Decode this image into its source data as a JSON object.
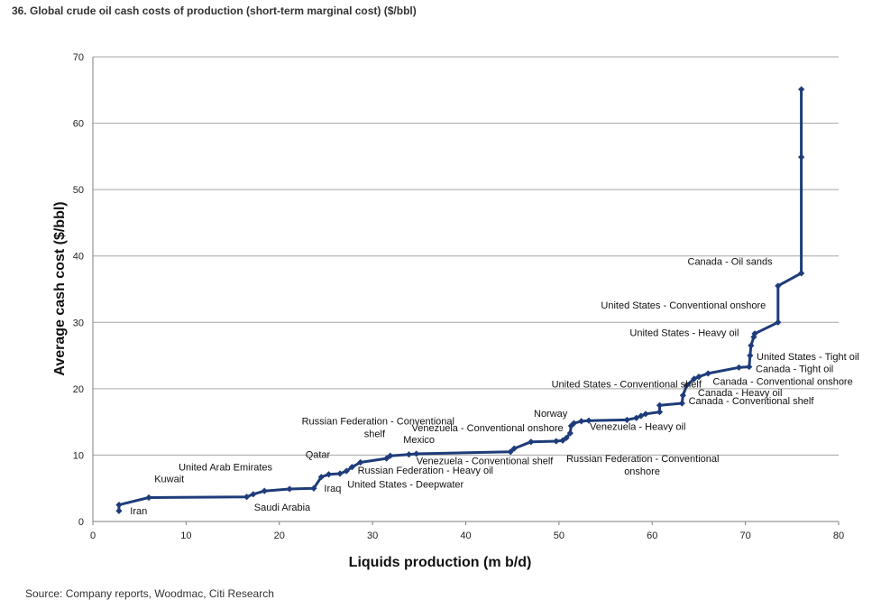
{
  "title": "36. Global crude oil cash costs of production (short-term marginal cost) ($/bbl)",
  "source": "Source: Company reports, Woodmac, Citi Research",
  "colors": {
    "series": "#1f3c7a",
    "grid": "#a6a6a6"
  },
  "chart_data": {
    "type": "line",
    "xlabel": "Liquids production (m b/d)",
    "ylabel": "Average cash cost ($/bbl)",
    "xlim": [
      0,
      80
    ],
    "ylim": [
      0,
      70
    ],
    "xticks": [
      "0",
      "10",
      "20",
      "30",
      "40",
      "50",
      "60",
      "70",
      "80"
    ],
    "yticks": [
      "0",
      "10",
      "20",
      "30",
      "40",
      "50",
      "60",
      "70"
    ],
    "grid": "horizontal",
    "legend": "none",
    "series": [
      {
        "x": [
          2.8,
          2.8,
          6.0,
          16.5,
          17.2,
          18.4,
          21.1,
          23.7,
          24.5,
          25.3,
          26.5,
          27.2,
          27.8,
          28.7,
          31.5,
          31.9,
          33.9,
          34.7,
          44.8,
          45.2,
          47.0,
          49.7,
          50.4,
          50.8,
          51.2,
          51.3,
          51.6,
          52.4,
          53.2,
          57.3,
          58.3,
          58.8,
          59.3,
          60.8,
          60.8,
          63.2,
          63.3,
          63.7,
          64.5,
          65.0,
          66.0,
          69.3,
          70.4,
          70.5,
          70.6,
          70.9,
          71.0,
          73.5,
          73.5,
          76.0,
          76.0,
          76.0
        ],
        "y": [
          1.6,
          2.5,
          3.6,
          3.7,
          4.1,
          4.6,
          4.9,
          5.0,
          6.7,
          7.1,
          7.2,
          7.6,
          8.2,
          8.9,
          9.5,
          9.9,
          10.1,
          10.2,
          10.5,
          11.0,
          12.0,
          12.1,
          12.2,
          12.6,
          13.3,
          14.4,
          14.8,
          15.1,
          15.2,
          15.3,
          15.6,
          15.9,
          16.2,
          16.5,
          17.5,
          17.8,
          19.0,
          20.5,
          21.5,
          21.8,
          22.3,
          23.2,
          23.3,
          25.0,
          26.5,
          27.8,
          28.3,
          30.0,
          35.5,
          37.4,
          54.9,
          65.1
        ]
      }
    ],
    "annotations": [
      {
        "text": "Iran",
        "x": 4.0,
        "y": 1.1
      },
      {
        "text": "Kuwait",
        "x": 6.6,
        "y": 5.9
      },
      {
        "text": "United Arab Emirates",
        "x": 9.2,
        "y": 7.7
      },
      {
        "text": "Saudi Arabia",
        "x": 17.3,
        "y": 1.6
      },
      {
        "text": "Qatar",
        "x": 22.8,
        "y": 9.6
      },
      {
        "text": "Iraq",
        "x": 24.8,
        "y": 4.5
      },
      {
        "text": "Russian Federation - Heavy oil",
        "x": 28.4,
        "y": 7.2
      },
      {
        "text": "United States - Deepwater",
        "x": 27.3,
        "y": 5.1
      },
      {
        "text": "Russian Federation - Conventional",
        "x": 22.4,
        "y": 14.6
      },
      {
        "text": "shelf",
        "x": 29.1,
        "y": 12.7
      },
      {
        "text": "Mexico",
        "x": 33.3,
        "y": 11.8
      },
      {
        "text": "Venezuela - Conventional onshore",
        "x": 34.2,
        "y": 13.6
      },
      {
        "text": "Venezuela - Conventional shelf",
        "x": 34.7,
        "y": 8.6
      },
      {
        "text": "Norway",
        "x": 47.3,
        "y": 15.8
      },
      {
        "text": "Venezuela - Heavy oil",
        "x": 53.3,
        "y": 13.8
      },
      {
        "text": "Russian Federation - Conventional",
        "x": 50.8,
        "y": 9.0
      },
      {
        "text": "onshore",
        "x": 57.0,
        "y": 7.1
      },
      {
        "text": "United States - Conventional shelf",
        "x": 49.2,
        "y": 20.2
      },
      {
        "text": "Canada - Heavy oil",
        "x": 64.9,
        "y": 18.9
      },
      {
        "text": "Canada - Conventional shelf",
        "x": 63.9,
        "y": 17.7
      },
      {
        "text": "Canada - Conventional onshore",
        "x": 66.5,
        "y": 20.6
      },
      {
        "text": "Canada - Tight oil",
        "x": 71.1,
        "y": 22.5
      },
      {
        "text": "United States - Tight oil",
        "x": 71.2,
        "y": 24.3
      },
      {
        "text": "United States - Heavy oil",
        "x": 57.6,
        "y": 27.9
      },
      {
        "text": "United States - Conventional onshore",
        "x": 54.5,
        "y": 32.1
      },
      {
        "text": "Canada - Oil sands",
        "x": 63.8,
        "y": 38.7
      }
    ]
  }
}
